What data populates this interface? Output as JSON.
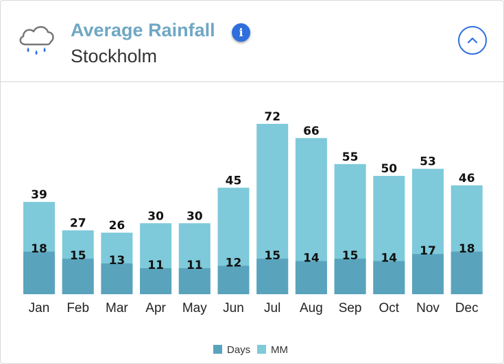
{
  "header": {
    "title": "Average Rainfall",
    "subtitle": "Stockholm",
    "info_icon": "info-icon",
    "info_glyph": "i",
    "collapse_icon": "chevron-up-icon",
    "weather_icon": "cloud-rain-icon"
  },
  "colors": {
    "days": "#5aa3bd",
    "mm": "#7ec9da",
    "accent": "#2f6fdd",
    "title": "#6fa7c4"
  },
  "chart_data": {
    "type": "bar",
    "title": "Average Rainfall",
    "subtitle": "Stockholm",
    "categories": [
      "Jan",
      "Feb",
      "Mar",
      "Apr",
      "May",
      "Jun",
      "Jul",
      "Aug",
      "Sep",
      "Oct",
      "Nov",
      "Dec"
    ],
    "series": [
      {
        "name": "MM",
        "values": [
          39,
          27,
          26,
          30,
          30,
          45,
          72,
          66,
          55,
          50,
          53,
          46
        ]
      },
      {
        "name": "Days",
        "values": [
          18,
          15,
          13,
          11,
          11,
          12,
          15,
          14,
          15,
          14,
          17,
          18
        ]
      }
    ],
    "xlabel": "",
    "ylabel": "",
    "ylim": [
      0,
      72
    ],
    "grid": false,
    "legend": {
      "position": "bottom-center",
      "entries": [
        "Days",
        "MM"
      ]
    }
  }
}
